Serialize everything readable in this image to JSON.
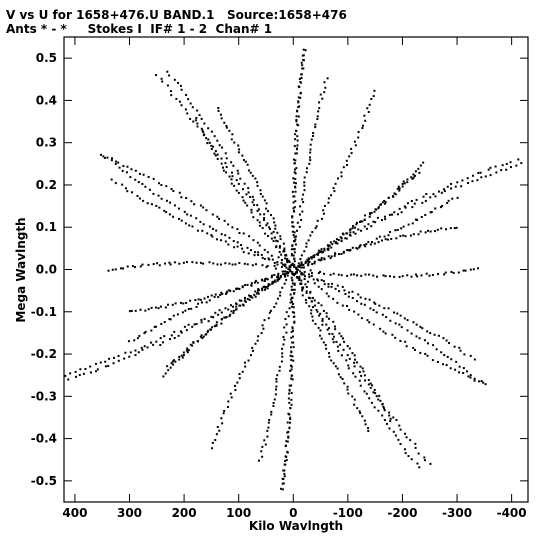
{
  "chart_data": {
    "type": "scatter",
    "title_line1": "V vs U for 1658+476.U BAND.1   Source:1658+476",
    "title_line2": "Ants * - *     Stokes I  IF# 1 - 2  Chan# 1",
    "xlabel": "Kilo Wavlngth",
    "ylabel": "Mega Wavlngth",
    "xlim": [
      420,
      -430
    ],
    "ylim": [
      -0.55,
      0.55
    ],
    "xticks": [
      400,
      300,
      200,
      100,
      0,
      -100,
      -200,
      -300,
      -400
    ],
    "xtick_labels": [
      "400",
      "300",
      "200",
      "100",
      "0",
      "-100",
      "-200",
      "-300",
      "-400"
    ],
    "yticks": [
      0.5,
      0.4,
      0.3,
      0.2,
      0.1,
      0.0,
      -0.1,
      -0.2,
      -0.3,
      -0.4,
      -0.5
    ],
    "ytick_labels": [
      "0.5",
      "0.4",
      "0.3",
      "0.2",
      "0.1",
      "0.0",
      "-0.1",
      "-0.2",
      "-0.3",
      "-0.4",
      "-0.5"
    ],
    "grid": false,
    "marker_color": "#000000",
    "track_arms": [
      {
        "u": 230,
        "v": 0.47
      },
      {
        "u": -20,
        "v": 0.52
      },
      {
        "u": -240,
        "v": 0.25
      },
      {
        "u": -420,
        "v": 0.25
      },
      {
        "u": -340,
        "v": 0.0
      },
      {
        "u": -350,
        "v": -0.27
      },
      {
        "u": -250,
        "v": -0.46
      },
      {
        "u": 20,
        "v": -0.52
      },
      {
        "u": 230,
        "v": -0.23
      },
      {
        "u": 410,
        "v": -0.26
      },
      {
        "u": 350,
        "v": 0.27
      },
      {
        "u": 330,
        "v": 0.21
      },
      {
        "u": 140,
        "v": 0.38
      },
      {
        "u": -60,
        "v": 0.45
      },
      {
        "u": -300,
        "v": 0.17
      },
      {
        "u": -180,
        "v": -0.36
      },
      {
        "u": 150,
        "v": -0.42
      },
      {
        "u": 300,
        "v": -0.1
      }
    ]
  }
}
